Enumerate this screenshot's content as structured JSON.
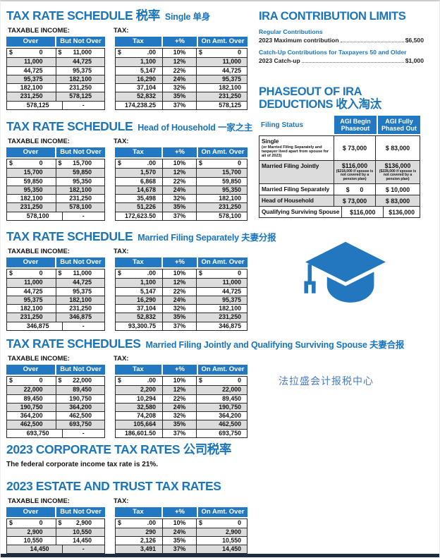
{
  "colors": {
    "accent_blue": "#1b75bc",
    "header_blue": "#2279c1",
    "row_gray": "#dcdcdc",
    "footer_navy": "#1d2b45",
    "brand_blue": "#4a7cc7",
    "cap_blue": "#2277be"
  },
  "labels": {
    "taxable_income": "TAXABLE INCOME:",
    "tax": "TAX:",
    "income_headers": [
      "Over",
      "But Not Over"
    ],
    "tax_headers": [
      "Tax",
      "+%",
      "On Amt. Over"
    ]
  },
  "schedules": [
    {
      "title": "TAX RATE SCHEDULE 税率",
      "subtitle": "Single 单身",
      "income": [
        [
          "$ 0",
          "$ 11,000"
        ],
        [
          "11,000",
          "44,725"
        ],
        [
          "44,725",
          "95,375"
        ],
        [
          "95,375",
          "182,100"
        ],
        [
          "182,100",
          "231,250"
        ],
        [
          "231,250",
          "578,125"
        ],
        [
          "578,125",
          "-"
        ]
      ],
      "tax": [
        [
          "$ .00",
          "10%",
          "$ 0"
        ],
        [
          "1,100",
          "12%",
          "11,000"
        ],
        [
          "5,147",
          "22%",
          "44,725"
        ],
        [
          "16,290",
          "24%",
          "95,375"
        ],
        [
          "37,104",
          "32%",
          "182,100"
        ],
        [
          "52,832",
          "35%",
          "231,250"
        ],
        [
          "174,238.25",
          "37%",
          "578,125"
        ]
      ]
    },
    {
      "title": "TAX RATE SCHEDULE",
      "subtitle": "Head of Household 一家之主",
      "income": [
        [
          "$ 0",
          "$ 15,700"
        ],
        [
          "15,700",
          "59,850"
        ],
        [
          "59,850",
          "95,350"
        ],
        [
          "95,350",
          "182,100"
        ],
        [
          "182,100",
          "231,250"
        ],
        [
          "231,250",
          "578,100"
        ],
        [
          "578,100",
          "-"
        ]
      ],
      "tax": [
        [
          "$ .00",
          "10%",
          "$ 0"
        ],
        [
          "1,570",
          "12%",
          "15,700"
        ],
        [
          "6,868",
          "22%",
          "59,850"
        ],
        [
          "14,678",
          "24%",
          "95,350"
        ],
        [
          "35,498",
          "32%",
          "182,100"
        ],
        [
          "51,226",
          "35%",
          "231,250"
        ],
        [
          "172,623.50",
          "37%",
          "578,100"
        ]
      ]
    },
    {
      "title": "TAX RATE SCHEDULE",
      "subtitle": "Married Filing Separately 夫妻分报",
      "income": [
        [
          "$ 0",
          "$ 11,000"
        ],
        [
          "11,000",
          "44,725"
        ],
        [
          "44,725",
          "95,375"
        ],
        [
          "95,375",
          "182,100"
        ],
        [
          "182,100",
          "231,250"
        ],
        [
          "231,250",
          "346,875"
        ],
        [
          "346,875",
          "-"
        ]
      ],
      "tax": [
        [
          "$ .00",
          "10%",
          "$ 0"
        ],
        [
          "1,100",
          "12%",
          "11,000"
        ],
        [
          "5,147",
          "22%",
          "44,725"
        ],
        [
          "16,290",
          "24%",
          "95,375"
        ],
        [
          "37,104",
          "32%",
          "182,100"
        ],
        [
          "52,832",
          "35%",
          "231,250"
        ],
        [
          "93,300.75",
          "37%",
          "346,875"
        ]
      ]
    },
    {
      "title": "TAX RATE SCHEDULES",
      "subtitle": "Married Filing Jointly and Qualifying Surviving Spouse 夫妻合报",
      "income": [
        [
          "$ 0",
          "$ 22,000"
        ],
        [
          "22,000",
          "89,450"
        ],
        [
          "89,450",
          "190,750"
        ],
        [
          "190,750",
          "364,200"
        ],
        [
          "364,200",
          "462,500"
        ],
        [
          "462,500",
          "693,750"
        ],
        [
          "693,750",
          "-"
        ]
      ],
      "tax": [
        [
          "$ .00",
          "10%",
          "$ 0"
        ],
        [
          "2,200",
          "12%",
          "22,000"
        ],
        [
          "10,294",
          "22%",
          "89,450"
        ],
        [
          "32,580",
          "24%",
          "190,750"
        ],
        [
          "74,208",
          "32%",
          "364,200"
        ],
        [
          "105,664",
          "35%",
          "462,500"
        ],
        [
          "186,601.50",
          "37%",
          "693,750"
        ]
      ]
    }
  ],
  "ira": {
    "title": "IRA CONTRIBUTION LIMITS",
    "items": [
      {
        "heading": "Regular Contributions",
        "label": "2023 Maximum contribution",
        "value": "$6,500"
      },
      {
        "heading": "Catch-Up Contributions for Taxpayers 50 and Older",
        "label": "2023 Catch-up",
        "value": "$1,000"
      }
    ]
  },
  "phaseout": {
    "title_line1": "PHASEOUT OF IRA",
    "title_line2": "DEDUCTIONS 收入淘汰",
    "col_headers": [
      "Filing Status",
      "AGI Begin Phaseout",
      "AGI Fully Phased Out"
    ],
    "rows": [
      {
        "label": "Single",
        "note": "(or Married Filing Separately and taxpayer lived apart from spouse for all of 2023)",
        "begin": "$ 73,000",
        "end": "$ 83,000"
      },
      {
        "label": "Married Filing Jointly",
        "begin": "$116,000",
        "begin_note": "($218,000 if spouse is not covered by a pension plan)",
        "end": "$136,000",
        "end_note": "($228,000 if spouse is not covered by a pension plan)"
      },
      {
        "label": "Married Filing Separately",
        "begin": "$      0",
        "end": "$ 10,000"
      },
      {
        "label": "Head of Household",
        "begin": "$ 73,000",
        "end": "$ 83,000"
      },
      {
        "label": "Qualifying Surviving Spouse",
        "begin": "$116,000",
        "end": "$136,000"
      }
    ]
  },
  "branding": {
    "center_name": "法拉盛会计报税中心",
    "icon": "graduation-cap-icon"
  },
  "corporate": {
    "title": "2023 CORPORATE TAX RATES 公司税率",
    "text": "The federal corporate income tax rate is 21%."
  },
  "estate": {
    "title": "2023 ESTATE AND TRUST TAX RATES",
    "income": [
      [
        "$ 0",
        "$ 2,900"
      ],
      [
        "2,900",
        "10,550"
      ],
      [
        "10,550",
        "14,450"
      ],
      [
        "14,450",
        "-"
      ]
    ],
    "tax": [
      [
        "$ .00",
        "10%",
        "$ 0"
      ],
      [
        "290",
        "24%",
        "2,900"
      ],
      [
        "2,126",
        "35%",
        "10,550"
      ],
      [
        "3,491",
        "37%",
        "14,450"
      ]
    ]
  }
}
